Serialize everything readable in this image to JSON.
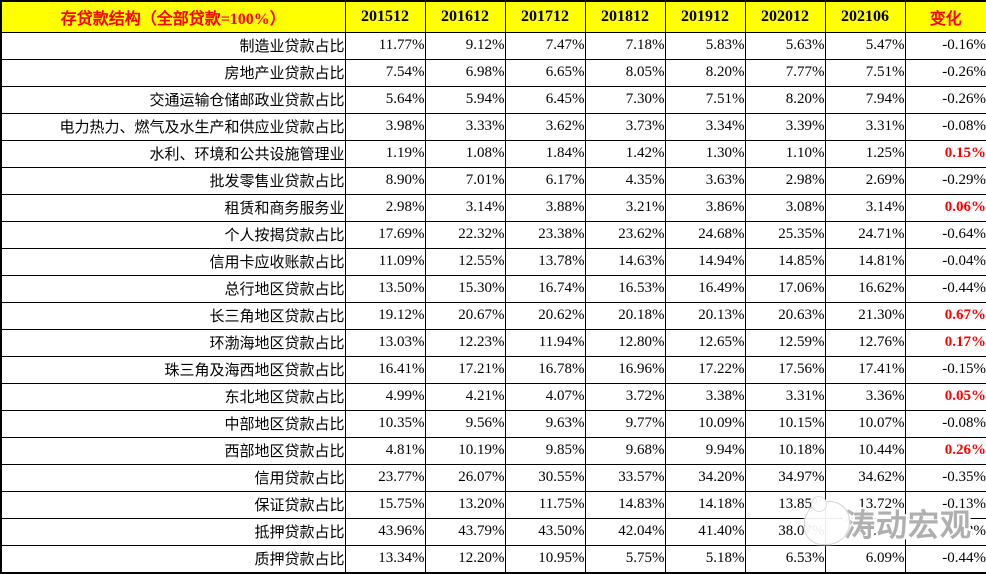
{
  "header": {
    "title": "存贷款结构（全部贷款=100%）",
    "periods": [
      "201512",
      "201612",
      "201712",
      "201812",
      "201912",
      "202012",
      "202106"
    ],
    "change_label": "变化"
  },
  "colors": {
    "header_bg": "#FFFF00",
    "title_text": "#FF0000",
    "period_text": "#000000",
    "change_header_text": "#FF0000",
    "positive_change_text": "#FF0000",
    "negative_change_text": "#000000",
    "grid_border": "#000000"
  },
  "watermark": {
    "text": "涛动宏观"
  },
  "chart_data": {
    "type": "table",
    "title": "存贷款结构（全部贷款=100%）",
    "columns": [
      "201512",
      "201612",
      "201712",
      "201812",
      "201912",
      "202012",
      "202106",
      "变化"
    ],
    "rows": [
      {
        "label": "制造业贷款占比",
        "values": [
          "11.77%",
          "9.12%",
          "7.47%",
          "7.18%",
          "5.83%",
          "5.63%",
          "5.47%"
        ],
        "change": "-0.16%",
        "change_positive": false
      },
      {
        "label": "房地产业贷款占比",
        "values": [
          "7.54%",
          "6.98%",
          "6.65%",
          "8.05%",
          "8.20%",
          "7.77%",
          "7.51%"
        ],
        "change": "-0.26%",
        "change_positive": false
      },
      {
        "label": "交通运输仓储邮政业贷款占比",
        "values": [
          "5.64%",
          "5.94%",
          "6.45%",
          "7.30%",
          "7.51%",
          "8.20%",
          "7.94%"
        ],
        "change": "-0.26%",
        "change_positive": false
      },
      {
        "label": "电力热力、燃气及水生产和供应业贷款占比",
        "values": [
          "3.98%",
          "3.33%",
          "3.62%",
          "3.73%",
          "3.34%",
          "3.39%",
          "3.31%"
        ],
        "change": "-0.08%",
        "change_positive": false
      },
      {
        "label": "水利、环境和公共设施管理业",
        "values": [
          "1.19%",
          "1.08%",
          "1.84%",
          "1.42%",
          "1.30%",
          "1.10%",
          "1.25%"
        ],
        "change": "0.15%",
        "change_positive": true
      },
      {
        "label": "批发零售业贷款占比",
        "values": [
          "8.90%",
          "7.01%",
          "6.17%",
          "4.35%",
          "3.63%",
          "2.98%",
          "2.69%"
        ],
        "change": "-0.29%",
        "change_positive": false
      },
      {
        "label": "租赁和商务服务业",
        "values": [
          "2.98%",
          "3.14%",
          "3.88%",
          "3.21%",
          "3.86%",
          "3.08%",
          "3.14%"
        ],
        "change": "0.06%",
        "change_positive": true
      },
      {
        "label": "个人按揭贷款占比",
        "values": [
          "17.69%",
          "22.32%",
          "23.38%",
          "23.62%",
          "24.68%",
          "25.35%",
          "24.71%"
        ],
        "change": "-0.64%",
        "change_positive": false
      },
      {
        "label": "信用卡应收账款占比",
        "values": [
          "11.09%",
          "12.55%",
          "13.78%",
          "14.63%",
          "14.94%",
          "14.85%",
          "14.81%"
        ],
        "change": "-0.04%",
        "change_positive": false
      },
      {
        "label": "总行地区贷款占比",
        "values": [
          "13.50%",
          "15.30%",
          "16.74%",
          "16.53%",
          "16.49%",
          "17.06%",
          "16.62%"
        ],
        "change": "-0.44%",
        "change_positive": false
      },
      {
        "label": "长三角地区贷款占比",
        "values": [
          "19.12%",
          "20.67%",
          "20.62%",
          "20.18%",
          "20.13%",
          "20.63%",
          "21.30%"
        ],
        "change": "0.67%",
        "change_positive": true
      },
      {
        "label": "环渤海地区贷款占比",
        "values": [
          "13.03%",
          "12.23%",
          "11.94%",
          "12.80%",
          "12.65%",
          "12.59%",
          "12.76%"
        ],
        "change": "0.17%",
        "change_positive": true
      },
      {
        "label": "珠三角及海西地区贷款占比",
        "values": [
          "16.41%",
          "17.21%",
          "16.78%",
          "16.96%",
          "17.22%",
          "17.56%",
          "17.41%"
        ],
        "change": "-0.15%",
        "change_positive": false
      },
      {
        "label": "东北地区贷款占比",
        "values": [
          "4.99%",
          "4.21%",
          "4.07%",
          "3.72%",
          "3.38%",
          "3.31%",
          "3.36%"
        ],
        "change": "0.05%",
        "change_positive": true
      },
      {
        "label": "中部地区贷款占比",
        "values": [
          "10.35%",
          "9.56%",
          "9.63%",
          "9.77%",
          "10.09%",
          "10.15%",
          "10.07%"
        ],
        "change": "-0.08%",
        "change_positive": false
      },
      {
        "label": "西部地区贷款占比",
        "values": [
          "4.81%",
          "10.19%",
          "9.85%",
          "9.68%",
          "9.94%",
          "10.18%",
          "10.44%"
        ],
        "change": "0.26%",
        "change_positive": true
      },
      {
        "label": "信用贷款占比",
        "values": [
          "23.77%",
          "26.07%",
          "30.55%",
          "33.57%",
          "34.20%",
          "34.97%",
          "34.62%"
        ],
        "change": "-0.35%",
        "change_positive": false
      },
      {
        "label": "保证贷款占比",
        "values": [
          "15.75%",
          "13.20%",
          "11.75%",
          "14.83%",
          "14.18%",
          "13.85%",
          "13.72%"
        ],
        "change": "-0.13%",
        "change_positive": false
      },
      {
        "label": "抵押贷款占比",
        "values": [
          "43.96%",
          "43.79%",
          "43.50%",
          "42.04%",
          "41.40%",
          "38.07%",
          "37.65%"
        ],
        "change": "-0.42%",
        "change_positive": false
      },
      {
        "label": "质押贷款占比",
        "values": [
          "13.34%",
          "12.20%",
          "10.95%",
          "5.75%",
          "5.18%",
          "6.53%",
          "6.09%"
        ],
        "change": "-0.44%",
        "change_positive": false
      }
    ]
  }
}
